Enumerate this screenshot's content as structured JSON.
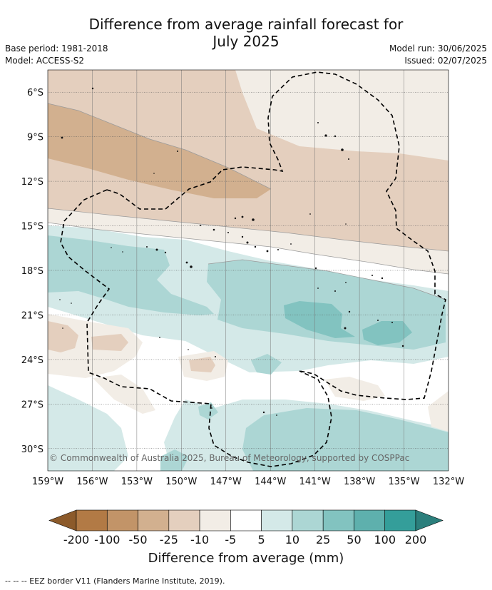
{
  "title": {
    "line1": "Difference from average rainfall forecast for",
    "line2": "July 2025"
  },
  "meta": {
    "base_period": "Base period: 1981-2018",
    "model": "Model: ACCESS-S2",
    "model_run": "Model run: 30/06/2025",
    "issued": "Issued: 02/07/2025"
  },
  "map": {
    "lat_labels": [
      "6°S",
      "9°S",
      "12°S",
      "15°S",
      "18°S",
      "21°S",
      "24°S",
      "27°S",
      "30°S"
    ],
    "lon_labels": [
      "159°W",
      "156°W",
      "153°W",
      "150°W",
      "147°W",
      "144°W",
      "141°W",
      "138°W",
      "135°W",
      "132°W"
    ],
    "lat_values": [
      -6,
      -9,
      -12,
      -15,
      -18,
      -21,
      -24,
      -27,
      -30
    ],
    "lon_values": [
      -159,
      -156,
      -153,
      -150,
      -147,
      -144,
      -141,
      -138,
      -135,
      -132
    ],
    "extent": {
      "lon_min": -159,
      "lon_max": -132,
      "lat_min": -31.5,
      "lat_max": -4.5
    },
    "copyright": "© Commonwealth of Australia 2025, Bureau of Meteorology, supported by COSPPac"
  },
  "colorbar": {
    "title": "Difference from average (mm)",
    "labels": [
      "-200",
      "-100",
      "-50",
      "-25",
      "-10",
      "-5",
      "5",
      "10",
      "25",
      "50",
      "100",
      "200"
    ],
    "colors": [
      "#8c5a2a",
      "#b27a45",
      "#c29468",
      "#d2b08f",
      "#e4cfbe",
      "#f2ede6",
      "#ffffff",
      "#d4e9e8",
      "#acd6d4",
      "#82c3c0",
      "#5eb0ad",
      "#349e9a",
      "#2b7f7c"
    ]
  },
  "footnote": "-- -- -- EEZ border V11 (Flanders Marine Institute, 2019)."
}
